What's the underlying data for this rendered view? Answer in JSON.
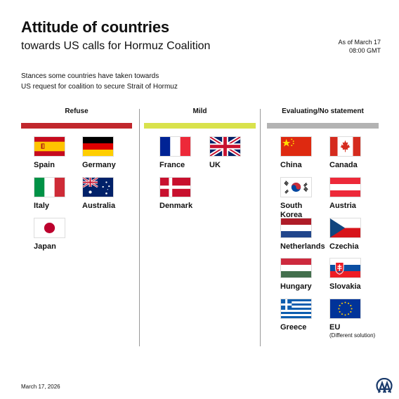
{
  "header": {
    "title": "Attitude of countries",
    "subtitle": "towards US calls for Hormuz Coalition",
    "as_of_line1": "As of March 17",
    "as_of_line2": "08:00 GMT",
    "description_line1": "Stances some countries have taken towards",
    "description_line2": "US request for coalition to secure Strait of Hormuz"
  },
  "columns": [
    {
      "label": "Refuse",
      "color": "#c1272d"
    },
    {
      "label": "Mild",
      "color": "#d9e24c"
    },
    {
      "label": "Evaluating/No statement",
      "color": "#b3b3b3"
    }
  ],
  "countries": {
    "spain": {
      "name": "Spain",
      "flag": "spain-flag-icon"
    },
    "germany": {
      "name": "Germany",
      "flag": "germany-flag-icon"
    },
    "italy": {
      "name": "Italy",
      "flag": "italy-flag-icon"
    },
    "australia": {
      "name": "Australia",
      "flag": "australia-flag-icon"
    },
    "japan": {
      "name": "Japan",
      "flag": "japan-flag-icon"
    },
    "france": {
      "name": "France",
      "flag": "france-flag-icon"
    },
    "uk": {
      "name": "UK",
      "flag": "uk-flag-icon"
    },
    "denmark": {
      "name": "Denmark",
      "flag": "denmark-flag-icon"
    },
    "china": {
      "name": "China",
      "flag": "china-flag-icon"
    },
    "canada": {
      "name": "Canada",
      "flag": "canada-flag-icon"
    },
    "south_korea": {
      "name": "South\nKorea",
      "flag": "south-korea-flag-icon"
    },
    "austria": {
      "name": "Austria",
      "flag": "austria-flag-icon"
    },
    "netherlands": {
      "name": "Netherlands",
      "flag": "netherlands-flag-icon"
    },
    "czechia": {
      "name": "Czechia",
      "flag": "czechia-flag-icon"
    },
    "hungary": {
      "name": "Hungary",
      "flag": "hungary-flag-icon"
    },
    "slovakia": {
      "name": "Slovakia",
      "flag": "slovakia-flag-icon"
    },
    "greece": {
      "name": "Greece",
      "flag": "greece-flag-icon"
    },
    "eu": {
      "name": "EU",
      "note": "(Different solution)",
      "flag": "eu-flag-icon"
    }
  },
  "footer": {
    "date": "March 17, 2026",
    "logo": "aa-logo-icon"
  }
}
